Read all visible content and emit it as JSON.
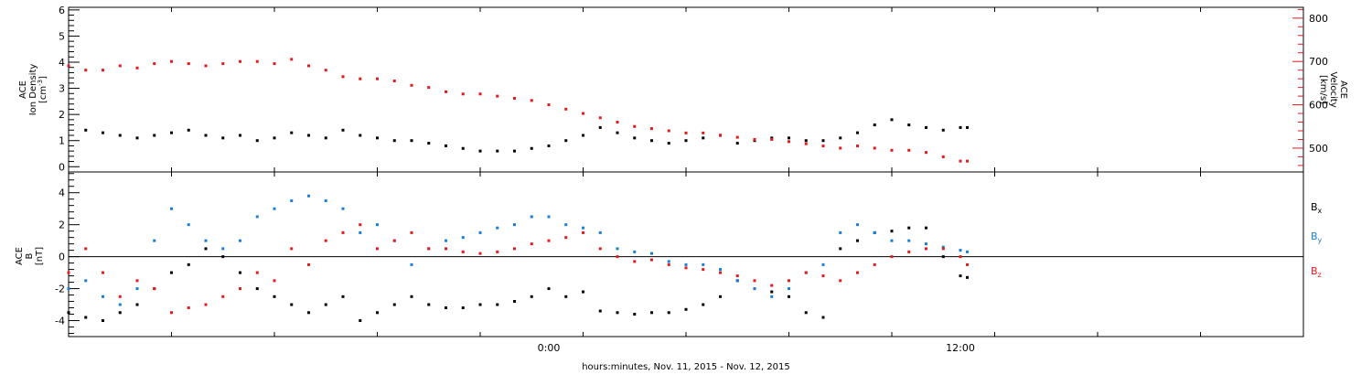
{
  "xlabel": "hours:minutes, Nov. 11, 2015 - Nov. 12, 2015",
  "colors": {
    "black": "#000000",
    "red": "#e41a1c",
    "blue": "#1a7fd9"
  },
  "chart_data": [
    {
      "type": "scatter",
      "panel": "top",
      "title": "",
      "xlim": [
        -14,
        22
      ],
      "x_ticks": [
        {
          "value": 0,
          "label": "0:00"
        },
        {
          "value": 12,
          "label": "12:00"
        }
      ],
      "left_axis": {
        "label_lines": [
          "ACE",
          "Ion Density",
          "[cm^-3]"
        ],
        "ylim": [
          -0.2,
          6.1
        ],
        "ticks": [
          0,
          1,
          2,
          3,
          4,
          5,
          6
        ]
      },
      "right_axis": {
        "label_lines": [
          "ACE",
          "Velocity",
          "[km/s]"
        ],
        "ylim": [
          445,
          825
        ],
        "ticks": [
          500,
          600,
          700,
          800
        ],
        "color": "#e41a1c"
      },
      "series": [
        {
          "name": "",
          "axis": "left",
          "color": "#000000",
          "x": [
            -13.5,
            -13,
            -12.5,
            -12,
            -11.5,
            -11,
            -10.5,
            -10,
            -9.5,
            -9,
            -8.5,
            -8,
            -7.5,
            -7,
            -6.5,
            -6,
            -5.5,
            -5,
            -4.5,
            -4,
            -3.5,
            -3,
            -2.5,
            -2,
            -1.5,
            -1,
            -0.5,
            0,
            0.5,
            1,
            1.5,
            2,
            2.5,
            3,
            3.5,
            4,
            4.5,
            5,
            5.5,
            6,
            6.5,
            7,
            7.5,
            8,
            8.5,
            9,
            9.5,
            10,
            10.5,
            11,
            11.5,
            12,
            12.2
          ],
          "y": [
            1.4,
            1.3,
            1.2,
            1.1,
            1.2,
            1.3,
            1.4,
            1.2,
            1.1,
            1.2,
            1.0,
            1.1,
            1.3,
            1.2,
            1.1,
            1.4,
            1.2,
            1.1,
            1.0,
            1.0,
            0.9,
            0.8,
            0.7,
            0.6,
            0.6,
            0.6,
            0.7,
            0.8,
            1.0,
            1.2,
            1.5,
            1.3,
            1.1,
            1.0,
            0.9,
            1.0,
            1.1,
            1.2,
            0.9,
            1.0,
            1.1,
            1.1,
            1.0,
            1.0,
            1.1,
            1.3,
            1.6,
            1.8,
            1.6,
            1.5,
            1.4,
            1.5,
            1.5
          ]
        },
        {
          "name": "",
          "axis": "right",
          "color": "#e41a1c",
          "x": [
            -14,
            -13.5,
            -13,
            -12.5,
            -12,
            -11.5,
            -11,
            -10.5,
            -10,
            -9.5,
            -9,
            -8.5,
            -8,
            -7.5,
            -7,
            -6.5,
            -6,
            -5.5,
            -5,
            -4.5,
            -4,
            -3.5,
            -3,
            -2.5,
            -2,
            -1.5,
            -1,
            -0.5,
            0,
            0.5,
            1,
            1.5,
            2,
            2.5,
            3,
            3.5,
            4,
            4.5,
            5,
            5.5,
            6,
            6.5,
            7,
            7.5,
            8,
            8.5,
            9,
            9.5,
            10,
            10.5,
            11,
            11.5,
            12,
            12.2
          ],
          "y": [
            690,
            680,
            680,
            690,
            685,
            695,
            700,
            695,
            690,
            695,
            700,
            700,
            695,
            705,
            690,
            680,
            665,
            660,
            660,
            655,
            645,
            640,
            630,
            625,
            625,
            620,
            615,
            610,
            600,
            590,
            580,
            570,
            560,
            550,
            545,
            540,
            535,
            535,
            530,
            525,
            520,
            520,
            515,
            510,
            505,
            500,
            505,
            500,
            495,
            495,
            490,
            480,
            470,
            470
          ]
        }
      ]
    },
    {
      "type": "scatter",
      "panel": "bottom",
      "title": "",
      "xlim": [
        -14,
        22
      ],
      "x_ticks": [
        {
          "value": 0,
          "label": "0:00"
        },
        {
          "value": 12,
          "label": "12:00"
        }
      ],
      "left_axis": {
        "label_lines": [
          "ACE",
          "B",
          "[nT]"
        ],
        "ylim": [
          -5,
          5.3
        ],
        "ticks": [
          -4,
          -2,
          0,
          2,
          4
        ]
      },
      "zero_line": 0,
      "legend": {
        "position": "right",
        "entries": [
          "B_x",
          "B_y",
          "B_z"
        ]
      },
      "series": [
        {
          "name": "B_x",
          "color": "#000000",
          "x": [
            -14,
            -13.5,
            -13,
            -12.5,
            -12,
            -11.5,
            -11,
            -10.5,
            -10,
            -9.5,
            -9,
            -8.5,
            -8,
            -7.5,
            -7,
            -6.5,
            -6,
            -5.5,
            -5,
            -4.5,
            -4,
            -3.5,
            -3,
            -2.5,
            -2,
            -1.5,
            -1,
            -0.5,
            0,
            0.5,
            1,
            1.5,
            2,
            2.5,
            3,
            3.5,
            4,
            4.5,
            5,
            5.5,
            6,
            6.5,
            7,
            7.5,
            8,
            8.5,
            9,
            9.5,
            10,
            10.5,
            11,
            11.5,
            12,
            12.2
          ],
          "y": [
            -3.5,
            -3.8,
            -4.0,
            -3.5,
            -3.0,
            -2.0,
            -1.0,
            -0.5,
            0.5,
            0.0,
            -1.0,
            -2.0,
            -2.5,
            -3.0,
            -3.5,
            -3.0,
            -2.5,
            -4.0,
            -3.5,
            -3.0,
            -2.5,
            -3.0,
            -3.2,
            -3.2,
            -3.0,
            -3.0,
            -2.8,
            -2.5,
            -2.0,
            -2.5,
            -2.2,
            -3.4,
            -3.5,
            -3.6,
            -3.5,
            -3.5,
            -3.3,
            -3.0,
            -2.5,
            -1.5,
            -2.0,
            -2.2,
            -2.5,
            -3.5,
            -3.8,
            0.5,
            1.0,
            1.5,
            1.6,
            1.8,
            1.8,
            0.0,
            -1.2,
            -1.3
          ]
        },
        {
          "name": "B_y",
          "color": "#1a7fd9",
          "x": [
            -14,
            -13.5,
            -13,
            -12.5,
            -12,
            -11.5,
            -11,
            -10.5,
            -10,
            -9.5,
            -9,
            -8.5,
            -8,
            -7.5,
            -7,
            -6.5,
            -6,
            -5.5,
            -5,
            -4.5,
            -4,
            -3.5,
            -3,
            -2.5,
            -2,
            -1.5,
            -1,
            -0.5,
            0,
            0.5,
            1,
            1.5,
            2,
            2.5,
            3,
            3.5,
            4,
            4.5,
            5,
            5.5,
            6,
            6.5,
            7,
            7.5,
            8,
            8.5,
            9,
            9.5,
            10,
            10.5,
            11,
            11.5,
            12,
            12.2
          ],
          "y": [
            -2.0,
            -1.5,
            -2.5,
            -3.0,
            -2.0,
            1.0,
            3.0,
            2.0,
            1.0,
            0.5,
            1.0,
            2.5,
            3.0,
            3.5,
            3.8,
            3.5,
            3.0,
            1.5,
            2.0,
            1.0,
            -0.5,
            0.5,
            1.0,
            1.2,
            1.5,
            1.8,
            2.0,
            2.5,
            2.5,
            2.0,
            1.8,
            1.5,
            0.5,
            0.3,
            0.2,
            -0.3,
            -0.5,
            -0.5,
            -0.8,
            -1.5,
            -2.0,
            -2.5,
            -2.0,
            -1.0,
            -0.5,
            1.5,
            2.0,
            1.5,
            1.0,
            1.0,
            0.8,
            0.6,
            0.4,
            0.3
          ]
        },
        {
          "name": "B_z",
          "color": "#e41a1c",
          "x": [
            -14,
            -13.5,
            -13,
            -12.5,
            -12,
            -11.5,
            -11,
            -10.5,
            -10,
            -9.5,
            -9,
            -8.5,
            -8,
            -7.5,
            -7,
            -6.5,
            -6,
            -5.5,
            -5,
            -4.5,
            -4,
            -3.5,
            -3,
            -2.5,
            -2,
            -1.5,
            -1,
            -0.5,
            0,
            0.5,
            1,
            1.5,
            2,
            2.5,
            3,
            3.5,
            4,
            4.5,
            5,
            5.5,
            6,
            6.5,
            7,
            7.5,
            8,
            8.5,
            9,
            9.5,
            10,
            10.5,
            11,
            11.5,
            12,
            12.2
          ],
          "y": [
            -1.0,
            0.5,
            -1.0,
            -2.5,
            -1.5,
            -2.0,
            -3.5,
            -3.2,
            -3.0,
            -2.5,
            -2.0,
            -1.0,
            -1.5,
            0.5,
            -0.5,
            1.0,
            1.5,
            2.0,
            0.5,
            1.0,
            1.5,
            0.5,
            0.5,
            0.3,
            0.2,
            0.3,
            0.5,
            0.8,
            1.0,
            1.2,
            1.5,
            0.5,
            0.0,
            -0.3,
            -0.2,
            -0.5,
            -0.7,
            -0.8,
            -1.0,
            -1.2,
            -1.5,
            -1.8,
            -1.5,
            -1.0,
            -1.2,
            -1.5,
            -1.0,
            -0.5,
            0.0,
            0.3,
            0.5,
            0.5,
            0.0,
            -0.5
          ]
        }
      ]
    }
  ]
}
